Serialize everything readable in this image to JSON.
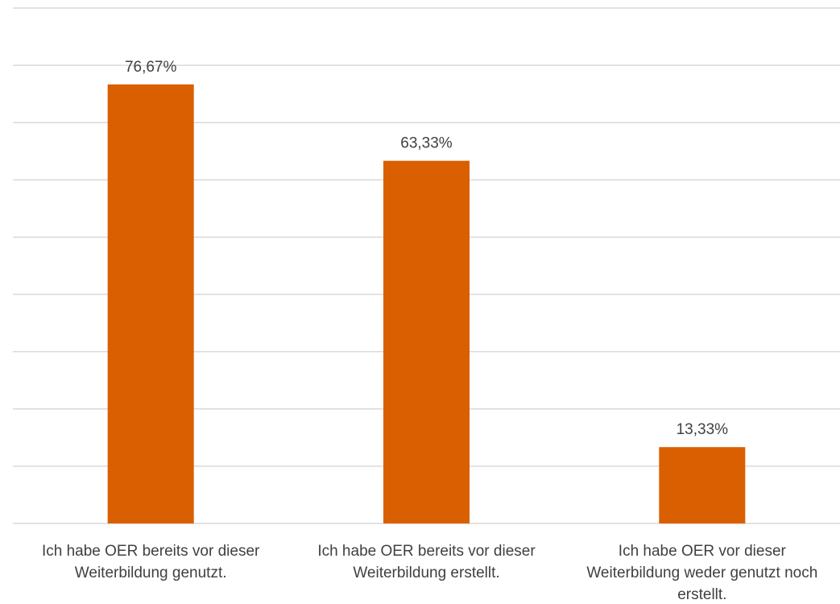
{
  "chart_data": {
    "type": "bar",
    "categories": [
      "Ich habe OER bereits vor dieser Weiterbildung genutzt.",
      "Ich habe OER bereits vor dieser Weiterbildung erstellt.",
      "Ich habe OER vor dieser Weiterbildung weder genutzt noch erstellt."
    ],
    "category_lines": [
      [
        "Ich habe OER bereits vor dieser",
        "Weiterbildung genutzt."
      ],
      [
        "Ich habe OER bereits vor dieser",
        "Weiterbildung erstellt."
      ],
      [
        "Ich habe OER vor dieser",
        "Weiterbildung weder genutzt noch",
        "erstellt."
      ]
    ],
    "values": [
      76.67,
      63.33,
      13.33
    ],
    "data_labels": [
      "76,67%",
      "63,33%",
      "13,33%"
    ],
    "title": "",
    "xlabel": "",
    "ylabel": "",
    "ylim": [
      0,
      90
    ],
    "ytick_step": 10,
    "grid": true,
    "ytick_labels_shown": false,
    "legend": "none",
    "bar_color": "#d95f00"
  }
}
